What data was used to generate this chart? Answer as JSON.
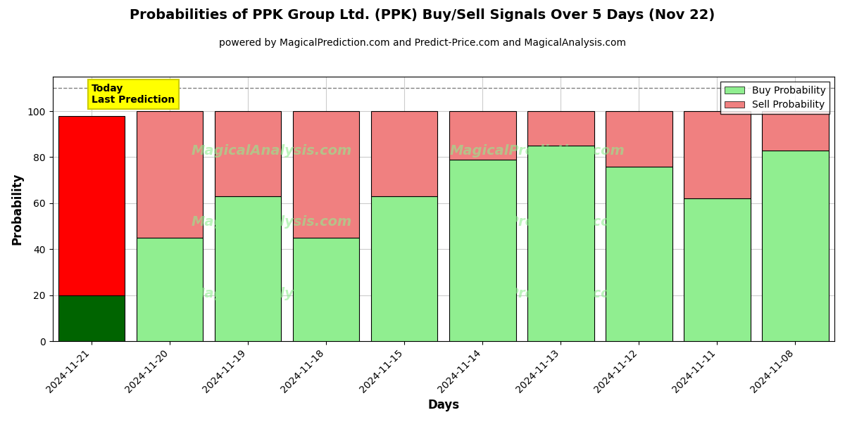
{
  "title": "Probabilities of PPK Group Ltd. (PPK) Buy/Sell Signals Over 5 Days (Nov 22)",
  "subtitle": "powered by MagicalPrediction.com and Predict-Price.com and MagicalAnalysis.com",
  "xlabel": "Days",
  "ylabel": "Probability",
  "dates": [
    "2024-11-21",
    "2024-11-20",
    "2024-11-19",
    "2024-11-18",
    "2024-11-15",
    "2024-11-14",
    "2024-11-13",
    "2024-11-12",
    "2024-11-11",
    "2024-11-08"
  ],
  "buy_values": [
    20,
    45,
    63,
    45,
    63,
    79,
    85,
    76,
    62,
    83
  ],
  "sell_values": [
    78,
    55,
    37,
    55,
    37,
    21,
    15,
    24,
    38,
    17
  ],
  "today_buy_color": "#006400",
  "today_sell_color": "#FF0000",
  "buy_color": "#90EE90",
  "sell_color": "#F08080",
  "bar_edge_color": "black",
  "bar_edge_width": 0.8,
  "today_label_bg": "#FFFF00",
  "today_label_text": "Today\nLast Prediction",
  "legend_buy_label": "Buy Probability",
  "legend_sell_label": "Sell Probability",
  "ylim": [
    0,
    115
  ],
  "yticks": [
    0,
    20,
    40,
    60,
    80,
    100
  ],
  "dashed_line_y": 110,
  "background_color": "#ffffff",
  "grid_color": "#cccccc",
  "title_fontsize": 14,
  "subtitle_fontsize": 10,
  "axis_label_fontsize": 12,
  "tick_fontsize": 10,
  "bar_width": 0.85
}
